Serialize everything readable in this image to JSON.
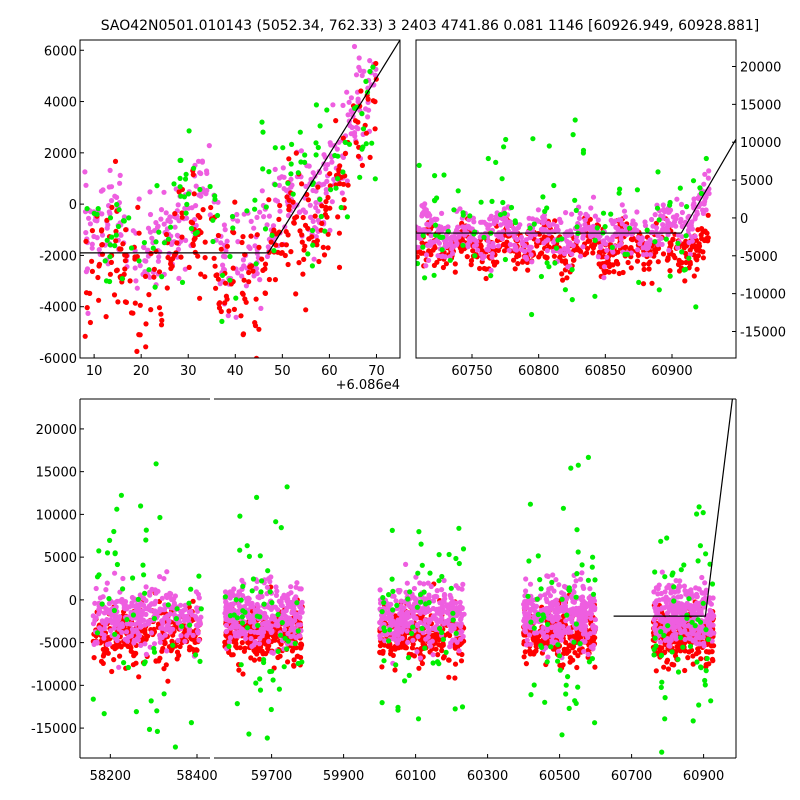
{
  "title": "SAO42N0501.010143 (5052.34, 762.33)    3 2403 4741.86 0.081 1146 [60926.949, 60928.881]",
  "colors": {
    "red": "#ff0000",
    "pink": "#ee5ee0",
    "green": "#00ee00",
    "model": "#000000"
  },
  "chart_data": [
    {
      "id": "top-left",
      "type": "scatter",
      "xlim": [
        7,
        75
      ],
      "ylim": [
        -6000,
        6400
      ],
      "x_offset_label": "+6.086e4",
      "xticks": [
        10,
        20,
        30,
        40,
        50,
        60,
        70
      ],
      "xtick_labels": [
        "10",
        "20",
        "30",
        "40",
        "50",
        "60",
        "70"
      ],
      "yticks": [
        -6000,
        -4000,
        -2000,
        0,
        2000,
        4000,
        6000
      ],
      "ytick_labels": [
        "-6000",
        "-4000",
        "-2000",
        "0",
        "2000",
        "4000",
        "6000"
      ],
      "model_line": {
        "x": [
          7,
          47,
          75
        ],
        "y": [
          -1900,
          -1900,
          6400
        ]
      },
      "series": [
        {
          "name": "pink",
          "color": "pink",
          "x_range": [
            8,
            70
          ],
          "base": [
            [
              8,
              -1200
            ],
            [
              14,
              -600
            ],
            [
              20,
              -2000
            ],
            [
              24,
              -1800
            ],
            [
              30,
              -200
            ],
            [
              34,
              800
            ],
            [
              37,
              -2200
            ],
            [
              44,
              -2000
            ],
            [
              48,
              -500
            ],
            [
              52,
              500
            ],
            [
              56,
              -200
            ],
            [
              60,
              1000
            ],
            [
              64,
              3000
            ],
            [
              70,
              5500
            ]
          ],
          "spread": 900,
          "count": 420
        },
        {
          "name": "red",
          "color": "red",
          "x_range": [
            8,
            70
          ],
          "base": [
            [
              8,
              -3000
            ],
            [
              14,
              -1800
            ],
            [
              20,
              -4200
            ],
            [
              24,
              -3000
            ],
            [
              30,
              -1600
            ],
            [
              34,
              -1400
            ],
            [
              37,
              -3000
            ],
            [
              44,
              -2800
            ],
            [
              48,
              -1200
            ],
            [
              52,
              -400
            ],
            [
              56,
              -1500
            ],
            [
              60,
              -200
            ],
            [
              64,
              1500
            ],
            [
              70,
              4200
            ]
          ],
          "spread": 1200,
          "count": 300
        },
        {
          "name": "green",
          "color": "green",
          "x_range": [
            8,
            70
          ],
          "base": [
            [
              8,
              -800
            ],
            [
              14,
              -500
            ],
            [
              20,
              -1800
            ],
            [
              24,
              -1500
            ],
            [
              30,
              0
            ],
            [
              34,
              500
            ],
            [
              37,
              -1800
            ],
            [
              44,
              -1000
            ],
            [
              48,
              500
            ],
            [
              52,
              1200
            ],
            [
              56,
              500
            ],
            [
              60,
              800
            ],
            [
              64,
              2000
            ],
            [
              70,
              4000
            ]
          ],
          "spread": 1400,
          "count": 130
        }
      ]
    },
    {
      "id": "top-right",
      "type": "scatter",
      "xlim": [
        60708,
        60948
      ],
      "ylim": [
        -18500,
        23500
      ],
      "xticks": [
        60750,
        60800,
        60850,
        60900
      ],
      "xtick_labels": [
        "60750",
        "60800",
        "60850",
        "60900"
      ],
      "yticks": [
        -15000,
        -10000,
        -5000,
        0,
        5000,
        10000,
        15000,
        20000
      ],
      "ytick_labels": [
        "-15000",
        "-10000",
        "-5000",
        "0",
        "5000",
        "10000",
        "15000",
        "20000"
      ],
      "model_line": {
        "x": [
          60708,
          60907,
          60948
        ],
        "y": [
          -2000,
          -2000,
          10400
        ]
      },
      "series": [
        {
          "name": "red",
          "color": "red",
          "x_range": [
            60708,
            60928
          ],
          "base": [
            [
              60708,
              -4000
            ],
            [
              60928,
              -4000
            ]
          ],
          "spread": 1500,
          "count": 520
        },
        {
          "name": "pink",
          "color": "pink",
          "x_range": [
            60708,
            60928
          ],
          "base": [
            [
              60708,
              -2200
            ],
            [
              60900,
              -2000
            ],
            [
              60915,
              0
            ],
            [
              60928,
              2000
            ]
          ],
          "spread": 1600,
          "count": 520
        },
        {
          "name": "green",
          "color": "green",
          "x_range": [
            60708,
            60928
          ],
          "base": [
            [
              60708,
              -2000
            ],
            [
              60928,
              -1000
            ]
          ],
          "spread": 6000,
          "count": 110
        }
      ]
    },
    {
      "id": "bottom",
      "type": "scatter",
      "ylim": [
        -18500,
        23500
      ],
      "yticks": [
        -15000,
        -10000,
        -5000,
        0,
        5000,
        10000,
        15000,
        20000
      ],
      "ytick_labels": [
        "-15000",
        "-10000",
        "-5000",
        "0",
        "5000",
        "10000",
        "15000",
        "20000"
      ],
      "segments": [
        {
          "xlim": [
            58130,
            58430
          ],
          "xticks": [
            58200,
            58400
          ],
          "xtick_labels": [
            "58200",
            "58400"
          ],
          "clusters": [
            [
              58160,
              58410
            ]
          ]
        },
        {
          "xlim": [
            59540,
            60990
          ],
          "xticks": [
            59700,
            59900,
            60100,
            60300,
            60500,
            60700,
            60900
          ],
          "xtick_labels": [
            "59700",
            "59900",
            "60100",
            "60300",
            "60500",
            "60700",
            "60900"
          ],
          "clusters": [
            [
              59570,
              59785
            ],
            [
              60000,
              60235
            ],
            [
              60400,
              60600
            ],
            [
              60760,
              60928
            ]
          ]
        }
      ],
      "model_line": {
        "x": [
          60650,
          60905,
          60980
        ],
        "y": [
          -1900,
          -1900,
          23500
        ]
      },
      "series": [
        {
          "name": "red",
          "color": "red",
          "base_y": -4200,
          "spread": 1600,
          "count_per_cluster": 260
        },
        {
          "name": "pink",
          "color": "pink",
          "base_y": -1800,
          "spread": 1800,
          "count_per_cluster": 320
        },
        {
          "name": "green",
          "color": "green",
          "base_y": -2500,
          "spread": 7000,
          "count_per_cluster": 60
        }
      ]
    }
  ]
}
